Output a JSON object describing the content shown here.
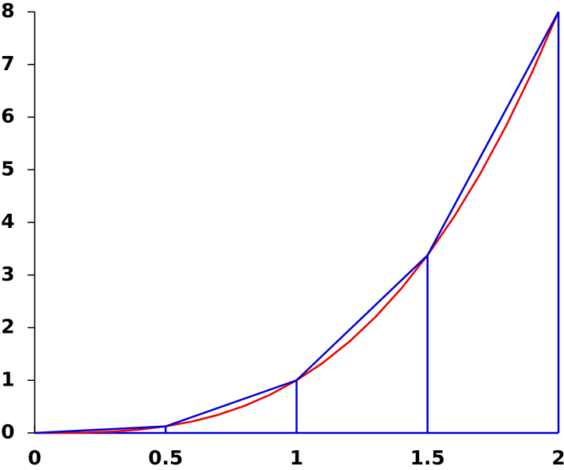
{
  "chart_data": {
    "type": "line",
    "xlim": [
      0,
      2
    ],
    "ylim": [
      0,
      8
    ],
    "xticks": [
      0,
      0.5,
      1,
      1.5,
      2
    ],
    "yticks": [
      0,
      1,
      2,
      3,
      4,
      5,
      6,
      7,
      8
    ],
    "series": [
      {
        "color": "#ee0000",
        "x": [
          0,
          0.1,
          0.2,
          0.3,
          0.4,
          0.5,
          0.6,
          0.7,
          0.8,
          0.9,
          1,
          1.1,
          1.2,
          1.3,
          1.4,
          1.5,
          1.6,
          1.7,
          1.8,
          1.9,
          2
        ],
        "values": [
          0,
          0.001,
          0.008,
          0.027,
          0.064,
          0.125,
          0.216,
          0.343,
          0.512,
          0.729,
          1,
          1.331,
          1.728,
          2.197,
          2.744,
          3.375,
          4.096,
          4.913,
          5.832,
          6.859,
          8
        ]
      },
      {
        "color": "#0000dd",
        "ordinates": true,
        "x": [
          0,
          0.5,
          1,
          1.5,
          2
        ],
        "values": [
          0,
          0.125,
          1,
          3.375,
          8
        ]
      }
    ]
  }
}
